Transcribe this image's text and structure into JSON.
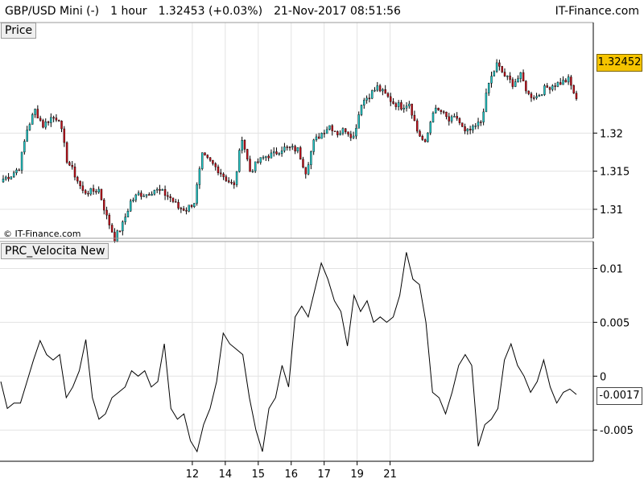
{
  "header": {
    "symbol": "GBP/USD Mini (-)",
    "timeframe": "1 hour",
    "last_price": "1.32453",
    "change": "(+0.03%)",
    "datetime": "21-Nov-2017 08:51:56",
    "brand": "IT-Finance.com"
  },
  "price_panel": {
    "label": "Price",
    "copyright": "© IT-Finance.com",
    "current_price_tag": "1.32452"
  },
  "indicator_panel": {
    "label": "PRC_Velocita New",
    "current_value_tag": "-0.0017"
  },
  "colors": {
    "up_candle": "#1fc4c4",
    "down_candle": "#c0101a",
    "wick": "#000000",
    "grid": "#e3e3e3",
    "indicator_line": "#000000",
    "price_tag": "#f5c400"
  },
  "chart_data": [
    {
      "type": "candlestick",
      "title": "Price",
      "ylim": [
        1.3062,
        1.3345
      ],
      "yticks": [
        1.31,
        1.315,
        1.32
      ],
      "ytick_labels": [
        "1.31",
        "1.315",
        "1.32"
      ],
      "xticks": [
        11.67,
        13.67,
        15.67,
        17.67,
        19.67,
        21.67,
        23.67
      ],
      "xtick_labels": [
        "12",
        "14",
        "15",
        "16",
        "17",
        "19",
        "21"
      ],
      "xlim": [
        0,
        36
      ],
      "grid": true,
      "closes": [
        1.314,
        1.3145,
        1.3155,
        1.3205,
        1.323,
        1.321,
        1.322,
        1.322,
        1.3165,
        1.3145,
        1.3123,
        1.3123,
        1.3126,
        1.309,
        1.3062,
        1.308,
        1.311,
        1.312,
        1.312,
        1.3126,
        1.3122,
        1.3115,
        1.3102,
        1.31,
        1.311,
        1.317,
        1.3162,
        1.3152,
        1.314,
        1.313,
        1.3195,
        1.315,
        1.3162,
        1.317,
        1.3172,
        1.318,
        1.318,
        1.3178,
        1.315,
        1.3188,
        1.32,
        1.321,
        1.32,
        1.3205,
        1.3195,
        1.324,
        1.325,
        1.326,
        1.325,
        1.324,
        1.3235,
        1.324,
        1.3203,
        1.3185,
        1.323,
        1.3228,
        1.3216,
        1.322,
        1.32,
        1.3205,
        1.3215,
        1.3265,
        1.329,
        1.3275,
        1.3265,
        1.3275,
        1.325,
        1.3248,
        1.3258,
        1.3263,
        1.3266,
        1.327,
        1.3245
      ],
      "chart_source_note": ""
    },
    {
      "type": "line",
      "title": "PRC_Velocita New",
      "ylim": [
        -0.0079,
        0.0125
      ],
      "yticks": [
        -0.005,
        0,
        0.005,
        0.01
      ],
      "ytick_labels": [
        "-0.005",
        "0",
        "0.005",
        "0.01"
      ],
      "xlim": [
        0,
        36
      ],
      "grid": true,
      "values": [
        -0.0005,
        -0.003,
        -0.0025,
        -0.0025,
        -0.0005,
        0.0015,
        0.0033,
        0.002,
        0.0015,
        0.002,
        -0.002,
        -0.001,
        0.0005,
        0.0034,
        -0.002,
        -0.004,
        -0.0035,
        -0.002,
        -0.0015,
        -0.001,
        0.0005,
        0.0,
        0.0005,
        -0.001,
        -0.0005,
        0.003,
        -0.003,
        -0.004,
        -0.0035,
        -0.006,
        -0.007,
        -0.0045,
        -0.003,
        -0.0005,
        0.004,
        0.003,
        0.0025,
        0.002,
        -0.002,
        -0.005,
        -0.007,
        -0.003,
        -0.002,
        0.001,
        -0.001,
        0.0055,
        0.0065,
        0.0055,
        0.008,
        0.0105,
        0.009,
        0.007,
        0.006,
        0.0028,
        0.0075,
        0.006,
        0.007,
        0.005,
        0.0055,
        0.005,
        0.0055,
        0.0075,
        0.0115,
        0.009,
        0.0085,
        0.005,
        -0.0015,
        -0.002,
        -0.0035,
        -0.0015,
        0.001,
        0.002,
        0.001,
        -0.0065,
        -0.0045,
        -0.004,
        -0.003,
        0.0015,
        0.003,
        0.001,
        0.0,
        -0.0015,
        -0.0005,
        0.0015,
        -0.001,
        -0.0025,
        -0.0015,
        -0.0012,
        -0.0017
      ]
    }
  ]
}
